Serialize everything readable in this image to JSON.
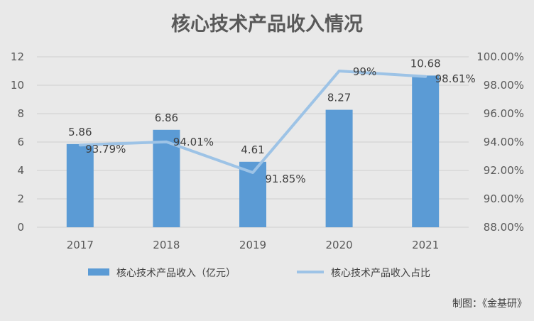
{
  "chart_data": {
    "type": "bar+line",
    "title": "核心技术产品收入情况",
    "categories": [
      "2017",
      "2018",
      "2019",
      "2020",
      "2021"
    ],
    "series": [
      {
        "name": "核心技术产品收入（亿元）",
        "type": "bar",
        "axis": "left",
        "values": [
          5.86,
          6.86,
          4.61,
          8.27,
          10.68
        ],
        "labels": [
          "5.86",
          "6.86",
          "4.61",
          "8.27",
          "10.68"
        ]
      },
      {
        "name": "核心技术产品收入占比",
        "type": "line",
        "axis": "right",
        "values": [
          93.79,
          94.01,
          91.85,
          99.0,
          98.61
        ],
        "labels": [
          "93.79%",
          "94.01%",
          "91.85%",
          "99%",
          "98.61%"
        ]
      }
    ],
    "y_left": {
      "min": 0,
      "max": 12,
      "ticks": [
        "0",
        "2",
        "4",
        "6",
        "8",
        "10",
        "12"
      ]
    },
    "y_right": {
      "min": 88,
      "max": 100,
      "ticks": [
        "88.00%",
        "90.00%",
        "92.00%",
        "94.00%",
        "96.00%",
        "98.00%",
        "100.00%"
      ]
    },
    "gridlines": true,
    "legend_position": "bottom"
  },
  "colors": {
    "bar": "#5b9bd5",
    "line": "#9dc3e6",
    "background": "#e9e9e9",
    "grid": "#d0d0d0"
  },
  "credit": "制图：《金基研》"
}
